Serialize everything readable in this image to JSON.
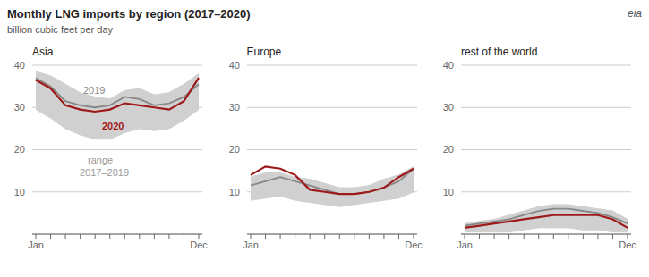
{
  "title": "Monthly LNG imports by region (2017–2020)",
  "subtitle": "billion cubic feet per day",
  "annotations": [
    "eia"
  ],
  "chart_data": [
    {
      "type": "line",
      "title": "Asia",
      "categories": [
        "Jan",
        null,
        null,
        null,
        null,
        null,
        null,
        null,
        null,
        null,
        null,
        "Dec"
      ],
      "ylim": [
        0,
        40
      ],
      "yticks": [
        10,
        20,
        30,
        40
      ],
      "grid": true,
      "annotations": [
        "2019",
        "2020",
        "range",
        "2017–2019"
      ],
      "series": [
        {
          "name": "2017–2019",
          "type": "area",
          "color": "#d0d0d0",
          "values": [
            [
              29.5,
              38.5
            ],
            [
              27.5,
              37.5
            ],
            [
              25.0,
              35.5
            ],
            [
              23.5,
              33.5
            ],
            [
              22.5,
              32.5
            ],
            [
              22.5,
              32.0
            ],
            [
              24.0,
              34.0
            ],
            [
              25.0,
              34.5
            ],
            [
              24.5,
              33.0
            ],
            [
              25.0,
              33.5
            ],
            [
              27.0,
              35.5
            ],
            [
              29.5,
              38.0
            ]
          ]
        },
        {
          "name": "2019",
          "type": "line",
          "color": "#888888",
          "values": [
            37.0,
            35.0,
            31.5,
            30.5,
            30.0,
            30.5,
            32.5,
            32.0,
            30.5,
            31.0,
            32.5,
            35.5
          ]
        },
        {
          "name": "2020",
          "type": "line",
          "color": "#9e1a1a",
          "values": [
            36.5,
            34.5,
            30.5,
            29.5,
            29.0,
            29.5,
            31.0,
            30.5,
            30.0,
            29.5,
            31.5,
            37.0
          ]
        }
      ]
    },
    {
      "type": "line",
      "title": "Europe",
      "categories": [
        "Jan",
        null,
        null,
        null,
        null,
        null,
        null,
        null,
        null,
        null,
        null,
        "Dec"
      ],
      "ylim": [
        0,
        40
      ],
      "yticks": [
        10,
        20,
        30,
        40
      ],
      "grid": true,
      "series": [
        {
          "name": "2017–2019",
          "type": "area",
          "color": "#d0d0d0",
          "values": [
            [
              8.0,
              13.5
            ],
            [
              8.5,
              14.5
            ],
            [
              9.0,
              14.5
            ],
            [
              8.0,
              13.5
            ],
            [
              7.5,
              13.0
            ],
            [
              7.0,
              12.0
            ],
            [
              6.5,
              11.0
            ],
            [
              7.0,
              11.0
            ],
            [
              7.5,
              11.5
            ],
            [
              8.0,
              13.0
            ],
            [
              8.5,
              14.0
            ],
            [
              10.0,
              16.0
            ]
          ]
        },
        {
          "name": "2019",
          "type": "line",
          "color": "#888888",
          "values": [
            11.5,
            12.5,
            13.5,
            12.5,
            11.5,
            10.5,
            9.5,
            9.5,
            10.0,
            11.0,
            12.5,
            15.5
          ]
        },
        {
          "name": "2020",
          "type": "line",
          "color": "#9e1a1a",
          "values": [
            14.0,
            16.0,
            15.5,
            14.0,
            10.5,
            10.0,
            9.5,
            9.5,
            10.0,
            11.0,
            13.5,
            15.5
          ]
        }
      ]
    },
    {
      "type": "line",
      "title": "rest of the world",
      "categories": [
        "Jan",
        null,
        null,
        null,
        null,
        null,
        null,
        null,
        null,
        null,
        null,
        "Dec"
      ],
      "ylim": [
        0,
        40
      ],
      "yticks": [
        10,
        20,
        30,
        40
      ],
      "grid": true,
      "series": [
        {
          "name": "2017–2019",
          "type": "area",
          "color": "#d0d0d0",
          "values": [
            [
              0.5,
              2.5
            ],
            [
              0.5,
              3.0
            ],
            [
              0.5,
              3.5
            ],
            [
              0.5,
              4.5
            ],
            [
              1.0,
              5.5
            ],
            [
              1.5,
              6.5
            ],
            [
              1.5,
              7.0
            ],
            [
              1.5,
              7.0
            ],
            [
              1.0,
              6.5
            ],
            [
              1.0,
              6.0
            ],
            [
              0.5,
              5.5
            ],
            [
              0.5,
              3.5
            ]
          ]
        },
        {
          "name": "2019",
          "type": "line",
          "color": "#888888",
          "values": [
            2.0,
            2.5,
            3.0,
            3.5,
            4.5,
            5.5,
            6.0,
            6.0,
            5.5,
            5.0,
            4.0,
            2.5
          ]
        },
        {
          "name": "2020",
          "type": "line",
          "color": "#9e1a1a",
          "values": [
            1.5,
            2.0,
            2.5,
            3.0,
            3.5,
            4.0,
            4.5,
            4.5,
            4.5,
            4.5,
            3.5,
            1.5
          ]
        }
      ]
    }
  ]
}
